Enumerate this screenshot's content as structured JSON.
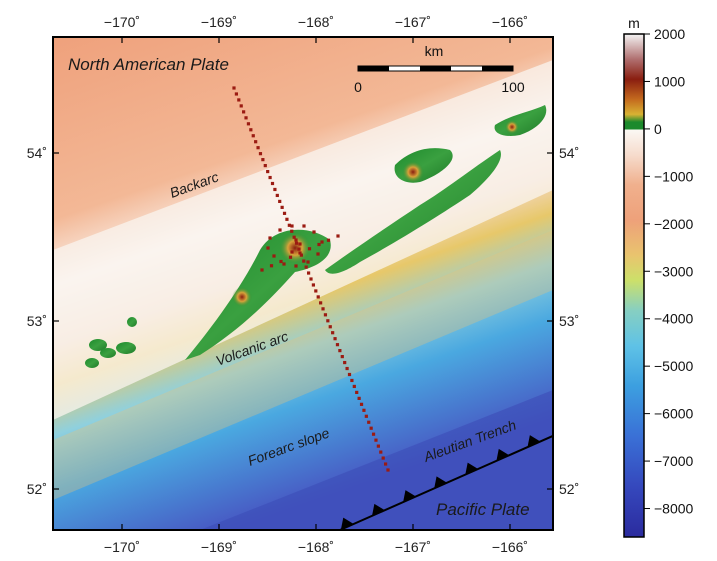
{
  "map": {
    "lon_ticks": [
      {
        "lon": -170,
        "label": "−170˚"
      },
      {
        "lon": -169,
        "label": "−169˚"
      },
      {
        "lon": -168,
        "label": "−168˚"
      },
      {
        "lon": -167,
        "label": "−167˚"
      },
      {
        "lon": -166,
        "label": "−166˚"
      }
    ],
    "lat_ticks": [
      {
        "lat": 54,
        "label": "54˚"
      },
      {
        "lat": 53,
        "label": "53˚"
      },
      {
        "lat": 52,
        "label": "52˚"
      }
    ],
    "labels": {
      "north_american_plate": "North American Plate",
      "backarc": "Backarc",
      "volcanic_arc": "Volcanic arc",
      "forearc_slope": "Forearc slope",
      "aleutian_trench": "Aleutian Trench",
      "pacific_plate": "Pacific Plate"
    },
    "scale_bar": {
      "unit": "km",
      "start_label": "0",
      "end_label": "100",
      "length_km": 100
    }
  },
  "colorbar": {
    "unit": "m",
    "ticks": [
      "2000",
      "1000",
      "0",
      "−1000",
      "−2000",
      "−3000",
      "−4000",
      "−5000",
      "−6000",
      "−7000",
      "−8000"
    ],
    "min": -8600,
    "max": 2000,
    "colors": {
      "deep": "#2b2b9e",
      "mid_deep": "#3f6fd8",
      "shelf": "#6fc6e6",
      "slope": "#d9e06a",
      "shallow": "#ee9e7a",
      "sea_level": "#f7f2ec",
      "lowland": "#1c8a2c",
      "mid_land": "#e6b43a",
      "high_land": "#8a1e10",
      "peak": "#f0f0f0"
    }
  }
}
